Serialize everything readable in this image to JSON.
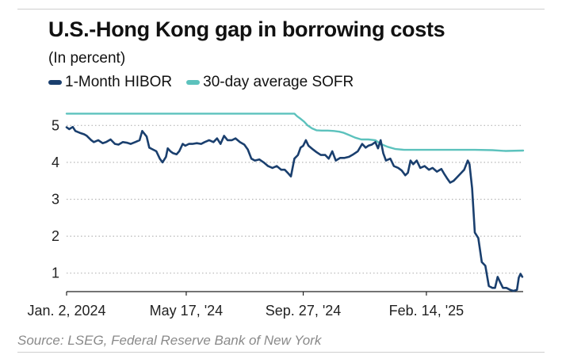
{
  "header": {
    "title": "U.S.-Hong Kong gap in borrowing costs",
    "subtitle": "(In percent)"
  },
  "footer": {
    "source": "Source: LSEG, Federal Reserve Bank of New York"
  },
  "colors": {
    "hibor": "#1a3f6e",
    "sofr": "#5cc2bd",
    "grid": "#b5b5b5",
    "axis": "#222222",
    "source_text": "#8a8a8a"
  },
  "chart_data": {
    "type": "line",
    "title": "U.S.-Hong Kong gap in borrowing costs",
    "subtitle": "(In percent)",
    "ylim": [
      0.5,
      5.35
    ],
    "yticks": [
      1,
      2,
      3,
      4,
      5
    ],
    "ytick_labels": [
      "1",
      "2",
      "3",
      "4",
      "5"
    ],
    "xlim": [
      "2024-01-02",
      "2025-06-04"
    ],
    "xticks": [
      "2024-01-02",
      "2024-05-17",
      "2024-09-27",
      "2025-02-14"
    ],
    "xtick_labels": [
      "Jan. 2, 2024",
      "May 17, '24",
      "Sep. 27, '24",
      "Feb. 14, '25"
    ],
    "grid": true,
    "grid_style": "dotted-horizontal",
    "legend_position": "top-left",
    "series": [
      {
        "name": "1-Month HIBOR",
        "color": "#1a3f6e",
        "points": [
          [
            "2024-01-02",
            4.95
          ],
          [
            "2024-01-05",
            4.9
          ],
          [
            "2024-01-09",
            4.96
          ],
          [
            "2024-01-12",
            4.85
          ],
          [
            "2024-01-17",
            4.8
          ],
          [
            "2024-01-22",
            4.76
          ],
          [
            "2024-01-25",
            4.72
          ],
          [
            "2024-01-30",
            4.6
          ],
          [
            "2024-02-02",
            4.55
          ],
          [
            "2024-02-07",
            4.6
          ],
          [
            "2024-02-12",
            4.52
          ],
          [
            "2024-02-16",
            4.55
          ],
          [
            "2024-02-21",
            4.62
          ],
          [
            "2024-02-26",
            4.5
          ],
          [
            "2024-03-01",
            4.48
          ],
          [
            "2024-03-06",
            4.55
          ],
          [
            "2024-03-11",
            4.53
          ],
          [
            "2024-03-15",
            4.5
          ],
          [
            "2024-03-20",
            4.55
          ],
          [
            "2024-03-25",
            4.6
          ],
          [
            "2024-03-28",
            4.85
          ],
          [
            "2024-04-02",
            4.7
          ],
          [
            "2024-04-05",
            4.4
          ],
          [
            "2024-04-09",
            4.35
          ],
          [
            "2024-04-13",
            4.3
          ],
          [
            "2024-04-17",
            4.1
          ],
          [
            "2024-04-20",
            4.0
          ],
          [
            "2024-04-24",
            4.15
          ],
          [
            "2024-04-26",
            4.38
          ],
          [
            "2024-04-29",
            4.3
          ],
          [
            "2024-05-02",
            4.25
          ],
          [
            "2024-05-06",
            4.22
          ],
          [
            "2024-05-09",
            4.3
          ],
          [
            "2024-05-13",
            4.5
          ],
          [
            "2024-05-16",
            4.45
          ],
          [
            "2024-05-20",
            4.5
          ],
          [
            "2024-05-24",
            4.5
          ],
          [
            "2024-05-29",
            4.52
          ],
          [
            "2024-06-03",
            4.5
          ],
          [
            "2024-06-07",
            4.55
          ],
          [
            "2024-06-12",
            4.6
          ],
          [
            "2024-06-17",
            4.55
          ],
          [
            "2024-06-21",
            4.65
          ],
          [
            "2024-06-25",
            4.5
          ],
          [
            "2024-06-29",
            4.72
          ],
          [
            "2024-07-03",
            4.6
          ],
          [
            "2024-07-08",
            4.6
          ],
          [
            "2024-07-12",
            4.65
          ],
          [
            "2024-07-17",
            4.55
          ],
          [
            "2024-07-22",
            4.48
          ],
          [
            "2024-07-26",
            4.35
          ],
          [
            "2024-07-30",
            4.1
          ],
          [
            "2024-08-03",
            4.05
          ],
          [
            "2024-08-08",
            4.08
          ],
          [
            "2024-08-13",
            4.0
          ],
          [
            "2024-08-18",
            3.9
          ],
          [
            "2024-08-23",
            3.85
          ],
          [
            "2024-08-28",
            3.9
          ],
          [
            "2024-09-02",
            3.8
          ],
          [
            "2024-09-06",
            3.8
          ],
          [
            "2024-09-10",
            3.7
          ],
          [
            "2024-09-13",
            3.62
          ],
          [
            "2024-09-17",
            4.1
          ],
          [
            "2024-09-21",
            4.2
          ],
          [
            "2024-09-24",
            4.4
          ],
          [
            "2024-09-27",
            4.45
          ],
          [
            "2024-09-30",
            4.6
          ],
          [
            "2024-10-03",
            4.45
          ],
          [
            "2024-10-08",
            4.35
          ],
          [
            "2024-10-12",
            4.28
          ],
          [
            "2024-10-17",
            4.2
          ],
          [
            "2024-10-22",
            4.2
          ],
          [
            "2024-10-26",
            4.1
          ],
          [
            "2024-10-30",
            4.3
          ],
          [
            "2024-11-03",
            4.05
          ],
          [
            "2024-11-08",
            4.12
          ],
          [
            "2024-11-13",
            4.12
          ],
          [
            "2024-11-18",
            4.15
          ],
          [
            "2024-11-23",
            4.22
          ],
          [
            "2024-11-28",
            4.3
          ],
          [
            "2024-12-03",
            4.5
          ],
          [
            "2024-12-07",
            4.4
          ],
          [
            "2024-12-10",
            4.45
          ],
          [
            "2024-12-14",
            4.48
          ],
          [
            "2024-12-18",
            4.55
          ],
          [
            "2024-12-21",
            4.38
          ],
          [
            "2024-12-24",
            4.6
          ],
          [
            "2024-12-27",
            4.25
          ],
          [
            "2024-12-30",
            4.05
          ],
          [
            "2025-01-04",
            4.1
          ],
          [
            "2025-01-08",
            3.9
          ],
          [
            "2025-01-13",
            3.85
          ],
          [
            "2025-01-17",
            3.78
          ],
          [
            "2025-01-21",
            3.65
          ],
          [
            "2025-01-24",
            3.72
          ],
          [
            "2025-01-27",
            4.05
          ],
          [
            "2025-01-30",
            3.95
          ],
          [
            "2025-02-03",
            4.05
          ],
          [
            "2025-02-07",
            3.85
          ],
          [
            "2025-02-12",
            3.9
          ],
          [
            "2025-02-17",
            3.8
          ],
          [
            "2025-02-21",
            3.85
          ],
          [
            "2025-02-26",
            3.75
          ],
          [
            "2025-03-03",
            3.82
          ],
          [
            "2025-03-06",
            3.7
          ],
          [
            "2025-03-10",
            3.55
          ],
          [
            "2025-03-13",
            3.45
          ],
          [
            "2025-03-17",
            3.5
          ],
          [
            "2025-03-21",
            3.6
          ],
          [
            "2025-03-25",
            3.7
          ],
          [
            "2025-03-29",
            3.8
          ],
          [
            "2025-04-02",
            4.05
          ],
          [
            "2025-04-04",
            3.95
          ],
          [
            "2025-04-07",
            3.3
          ],
          [
            "2025-04-10",
            2.1
          ],
          [
            "2025-04-14",
            1.95
          ],
          [
            "2025-04-18",
            1.3
          ],
          [
            "2025-04-22",
            1.2
          ],
          [
            "2025-04-26",
            0.65
          ],
          [
            "2025-04-30",
            0.6
          ],
          [
            "2025-05-03",
            0.6
          ],
          [
            "2025-05-06",
            0.9
          ],
          [
            "2025-05-09",
            0.75
          ],
          [
            "2025-05-12",
            0.6
          ],
          [
            "2025-05-16",
            0.6
          ],
          [
            "2025-05-20",
            0.55
          ],
          [
            "2025-05-24",
            0.52
          ],
          [
            "2025-05-28",
            0.55
          ],
          [
            "2025-05-30",
            0.88
          ],
          [
            "2025-06-01",
            0.98
          ],
          [
            "2025-06-03",
            0.9
          ]
        ]
      },
      {
        "name": "30-day average SOFR",
        "color": "#5cc2bd",
        "points": [
          [
            "2024-01-02",
            5.32
          ],
          [
            "2024-02-15",
            5.32
          ],
          [
            "2024-04-01",
            5.32
          ],
          [
            "2024-05-17",
            5.32
          ],
          [
            "2024-07-01",
            5.32
          ],
          [
            "2024-08-15",
            5.32
          ],
          [
            "2024-09-17",
            5.32
          ],
          [
            "2024-09-20",
            5.25
          ],
          [
            "2024-09-24",
            5.18
          ],
          [
            "2024-09-28",
            5.1
          ],
          [
            "2024-10-02",
            5.0
          ],
          [
            "2024-10-07",
            4.92
          ],
          [
            "2024-10-12",
            4.87
          ],
          [
            "2024-10-18",
            4.86
          ],
          [
            "2024-10-25",
            4.86
          ],
          [
            "2024-11-01",
            4.85
          ],
          [
            "2024-11-07",
            4.83
          ],
          [
            "2024-11-12",
            4.8
          ],
          [
            "2024-11-18",
            4.74
          ],
          [
            "2024-11-25",
            4.67
          ],
          [
            "2024-12-02",
            4.62
          ],
          [
            "2024-12-10",
            4.62
          ],
          [
            "2024-12-18",
            4.6
          ],
          [
            "2024-12-24",
            4.5
          ],
          [
            "2025-01-01",
            4.42
          ],
          [
            "2025-01-10",
            4.36
          ],
          [
            "2025-01-20",
            4.34
          ],
          [
            "2025-02-01",
            4.34
          ],
          [
            "2025-02-14",
            4.34
          ],
          [
            "2025-03-01",
            4.34
          ],
          [
            "2025-03-20",
            4.34
          ],
          [
            "2025-04-10",
            4.34
          ],
          [
            "2025-04-30",
            4.33
          ],
          [
            "2025-05-15",
            4.31
          ],
          [
            "2025-06-04",
            4.32
          ]
        ]
      }
    ]
  }
}
